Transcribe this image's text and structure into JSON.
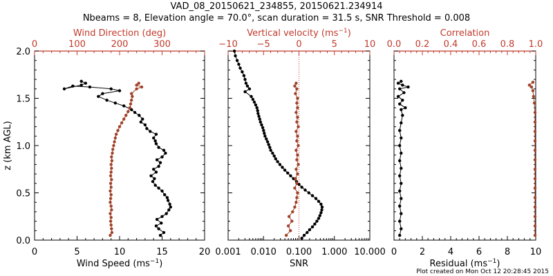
{
  "title_line1": "VAD_08_20150621_234855, 20150621.234914",
  "title_line2": "Nbeams = 8, Elevation angle = 70.0°, scan duration = 31.5 s, SNR Threshold = 0.008",
  "footer": "Plot created on Mon Oct 12 20:28:45 2015",
  "colors": {
    "black": "#000000",
    "red": "#c0392b",
    "brown": "#a0422a"
  },
  "chart_data": [
    {
      "type": "line",
      "panel": "wind",
      "ylabel": "z (km AGL)",
      "ylim": [
        0.0,
        2.0
      ],
      "y_ticks": [
        "0.0",
        "0.5",
        "1.0",
        "1.5",
        "2.0"
      ],
      "bottom_axis": {
        "label": "Wind Speed (ms⁻¹)",
        "range": [
          0,
          20
        ],
        "ticks": [
          "0",
          "5",
          "10",
          "15",
          "20"
        ]
      },
      "top_axis": {
        "label": "Wind Direction (deg)",
        "range": [
          0,
          400
        ],
        "ticks": [
          "0",
          "100",
          "200",
          "300"
        ]
      },
      "series": [
        {
          "name": "Wind Speed",
          "axis": "bottom",
          "color": "#000000",
          "points": [
            [
              14.8,
              0.05
            ],
            [
              15.2,
              0.08
            ],
            [
              14.6,
              0.12
            ],
            [
              14.3,
              0.15
            ],
            [
              14.9,
              0.18
            ],
            [
              14.4,
              0.22
            ],
            [
              15.0,
              0.25
            ],
            [
              15.5,
              0.28
            ],
            [
              15.8,
              0.32
            ],
            [
              16.0,
              0.35
            ],
            [
              15.9,
              0.38
            ],
            [
              15.7,
              0.42
            ],
            [
              15.6,
              0.45
            ],
            [
              15.3,
              0.48
            ],
            [
              15.0,
              0.52
            ],
            [
              14.6,
              0.55
            ],
            [
              14.2,
              0.58
            ],
            [
              13.9,
              0.62
            ],
            [
              14.1,
              0.65
            ],
            [
              13.7,
              0.68
            ],
            [
              14.3,
              0.72
            ],
            [
              14.0,
              0.75
            ],
            [
              14.6,
              0.78
            ],
            [
              14.8,
              0.82
            ],
            [
              14.4,
              0.85
            ],
            [
              15.0,
              0.88
            ],
            [
              15.4,
              0.92
            ],
            [
              15.2,
              0.95
            ],
            [
              14.6,
              0.98
            ],
            [
              14.3,
              1.02
            ],
            [
              14.2,
              1.05
            ],
            [
              14.0,
              1.08
            ],
            [
              14.3,
              1.12
            ],
            [
              13.6,
              1.15
            ],
            [
              13.2,
              1.18
            ],
            [
              13.0,
              1.22
            ],
            [
              12.5,
              1.25
            ],
            [
              12.7,
              1.28
            ],
            [
              12.3,
              1.32
            ],
            [
              11.8,
              1.35
            ],
            [
              11.4,
              1.38
            ],
            [
              10.5,
              1.42
            ],
            [
              9.5,
              1.45
            ],
            [
              8.5,
              1.48
            ],
            [
              7.5,
              1.52
            ],
            [
              8.0,
              1.55
            ],
            [
              10.0,
              1.58
            ],
            [
              9.0,
              1.6
            ],
            [
              6.5,
              1.62
            ],
            [
              4.5,
              1.63
            ],
            [
              3.5,
              1.6
            ],
            [
              5.5,
              1.64
            ],
            [
              6.0,
              1.66
            ],
            [
              5.5,
              1.68
            ]
          ]
        },
        {
          "name": "Wind Direction",
          "axis": "top",
          "color": "#a0422a",
          "points": [
            [
              178,
              0.05
            ],
            [
              182,
              0.08
            ],
            [
              181,
              0.12
            ],
            [
              180,
              0.16
            ],
            [
              179,
              0.2
            ],
            [
              180,
              0.24
            ],
            [
              178,
              0.28
            ],
            [
              181,
              0.32
            ],
            [
              180,
              0.36
            ],
            [
              178,
              0.4
            ],
            [
              179,
              0.44
            ],
            [
              180,
              0.48
            ],
            [
              178,
              0.52
            ],
            [
              180,
              0.56
            ],
            [
              179,
              0.6
            ],
            [
              181,
              0.64
            ],
            [
              179,
              0.68
            ],
            [
              180,
              0.72
            ],
            [
              181,
              0.76
            ],
            [
              180,
              0.8
            ],
            [
              182,
              0.84
            ],
            [
              181,
              0.88
            ],
            [
              183,
              0.92
            ],
            [
              184,
              0.96
            ],
            [
              186,
              1.0
            ],
            [
              188,
              1.04
            ],
            [
              190,
              1.08
            ],
            [
              192,
              1.12
            ],
            [
              196,
              1.16
            ],
            [
              200,
              1.2
            ],
            [
              205,
              1.24
            ],
            [
              210,
              1.28
            ],
            [
              215,
              1.32
            ],
            [
              220,
              1.36
            ],
            [
              224,
              1.4
            ],
            [
              226,
              1.44
            ],
            [
              228,
              1.48
            ],
            [
              230,
              1.52
            ],
            [
              228,
              1.55
            ],
            [
              240,
              1.6
            ],
            [
              252,
              1.62
            ],
            [
              240,
              1.64
            ],
            [
              245,
              1.66
            ]
          ]
        }
      ]
    },
    {
      "type": "line",
      "panel": "snr",
      "ylim": [
        0.0,
        2.0
      ],
      "bottom_axis": {
        "label": "SNR",
        "scale": "log",
        "range": [
          0.001,
          10.0
        ],
        "ticks": [
          "0.001",
          "0.010",
          "0.100",
          "1.000",
          "10.000"
        ]
      },
      "top_axis": {
        "label": "Vertical velocity (ms⁻¹)",
        "range": [
          -10,
          10
        ],
        "ticks": [
          "−10",
          "−5",
          "0",
          "5",
          "10"
        ]
      },
      "reference_line": {
        "axis": "top",
        "value": 0
      },
      "series": [
        {
          "name": "SNR",
          "axis": "bottom",
          "color": "#000000",
          "points": [
            [
              0.12,
              0.02
            ],
            [
              0.14,
              0.05
            ],
            [
              0.17,
              0.08
            ],
            [
              0.2,
              0.11
            ],
            [
              0.24,
              0.14
            ],
            [
              0.28,
              0.17
            ],
            [
              0.32,
              0.2
            ],
            [
              0.36,
              0.23
            ],
            [
              0.39,
              0.26
            ],
            [
              0.42,
              0.29
            ],
            [
              0.44,
              0.32
            ],
            [
              0.45,
              0.35
            ],
            [
              0.42,
              0.38
            ],
            [
              0.36,
              0.41
            ],
            [
              0.3,
              0.44
            ],
            [
              0.24,
              0.47
            ],
            [
              0.19,
              0.5
            ],
            [
              0.15,
              0.53
            ],
            [
              0.12,
              0.56
            ],
            [
              0.1,
              0.59
            ],
            [
              0.085,
              0.62
            ],
            [
              0.07,
              0.65
            ],
            [
              0.058,
              0.68
            ],
            [
              0.048,
              0.71
            ],
            [
              0.04,
              0.74
            ],
            [
              0.034,
              0.77
            ],
            [
              0.029,
              0.8
            ],
            [
              0.025,
              0.83
            ],
            [
              0.022,
              0.86
            ],
            [
              0.02,
              0.89
            ],
            [
              0.018,
              0.92
            ],
            [
              0.016,
              0.95
            ],
            [
              0.015,
              0.98
            ],
            [
              0.014,
              1.01
            ],
            [
              0.013,
              1.04
            ],
            [
              0.012,
              1.07
            ],
            [
              0.011,
              1.1
            ],
            [
              0.0105,
              1.13
            ],
            [
              0.01,
              1.16
            ],
            [
              0.0095,
              1.19
            ],
            [
              0.0088,
              1.22
            ],
            [
              0.0082,
              1.25
            ],
            [
              0.0078,
              1.28
            ],
            [
              0.0074,
              1.31
            ],
            [
              0.007,
              1.34
            ],
            [
              0.0068,
              1.37
            ],
            [
              0.0065,
              1.4
            ],
            [
              0.006,
              1.43
            ],
            [
              0.0055,
              1.46
            ],
            [
              0.005,
              1.49
            ],
            [
              0.0045,
              1.52
            ],
            [
              0.003,
              1.57
            ],
            [
              0.004,
              1.6
            ],
            [
              0.0035,
              1.63
            ],
            [
              0.0032,
              1.66
            ],
            [
              0.003,
              1.7
            ],
            [
              0.0028,
              1.74
            ],
            [
              0.0025,
              1.78
            ],
            [
              0.0022,
              1.82
            ],
            [
              0.002,
              1.86
            ],
            [
              0.0018,
              1.9
            ],
            [
              0.0016,
              1.95
            ],
            [
              0.0015,
              2.0
            ]
          ]
        },
        {
          "name": "Vertical velocity",
          "axis": "top",
          "color": "#a0422a",
          "points": [
            [
              -1.8,
              0.05
            ],
            [
              -1.2,
              0.1
            ],
            [
              -1.5,
              0.15
            ],
            [
              -1.0,
              0.2
            ],
            [
              -1.4,
              0.25
            ],
            [
              -0.9,
              0.3
            ],
            [
              -0.6,
              0.35
            ],
            [
              -0.4,
              0.4
            ],
            [
              -0.3,
              0.45
            ],
            [
              -0.2,
              0.5
            ],
            [
              -0.6,
              0.55
            ],
            [
              -0.3,
              0.6
            ],
            [
              -0.5,
              0.65
            ],
            [
              -0.2,
              0.7
            ],
            [
              -0.4,
              0.75
            ],
            [
              -0.1,
              0.8
            ],
            [
              -0.3,
              0.85
            ],
            [
              -0.2,
              0.9
            ],
            [
              -0.4,
              0.95
            ],
            [
              -0.1,
              1.0
            ],
            [
              -0.3,
              1.05
            ],
            [
              -0.2,
              1.1
            ],
            [
              -0.4,
              1.15
            ],
            [
              -0.1,
              1.2
            ],
            [
              -0.3,
              1.25
            ],
            [
              -0.2,
              1.3
            ],
            [
              -0.4,
              1.35
            ],
            [
              -0.2,
              1.4
            ],
            [
              -0.3,
              1.45
            ],
            [
              -0.2,
              1.5
            ],
            [
              -0.5,
              1.55
            ],
            [
              -0.3,
              1.6
            ],
            [
              -0.6,
              1.63
            ],
            [
              -0.4,
              1.66
            ]
          ]
        }
      ]
    },
    {
      "type": "line",
      "panel": "residual",
      "ylim": [
        0.0,
        2.0
      ],
      "bottom_axis": {
        "label": "Residual (ms⁻¹)",
        "range": [
          0,
          10
        ],
        "ticks": [
          "0",
          "2",
          "4",
          "6",
          "8",
          "10"
        ]
      },
      "top_axis": {
        "label": "Correlation",
        "range": [
          0.0,
          1.0
        ],
        "ticks": [
          "0.0",
          "0.2",
          "0.4",
          "0.6",
          "0.8",
          "1.0"
        ]
      },
      "series": [
        {
          "name": "Residual",
          "axis": "bottom",
          "color": "#000000",
          "points": [
            [
              0.4,
              0.05
            ],
            [
              0.5,
              0.12
            ],
            [
              0.4,
              0.2
            ],
            [
              0.5,
              0.28
            ],
            [
              0.4,
              0.36
            ],
            [
              0.5,
              0.44
            ],
            [
              0.4,
              0.52
            ],
            [
              0.5,
              0.6
            ],
            [
              0.4,
              0.68
            ],
            [
              0.5,
              0.76
            ],
            [
              0.4,
              0.84
            ],
            [
              0.5,
              0.92
            ],
            [
              0.4,
              1.0
            ],
            [
              0.5,
              1.08
            ],
            [
              0.4,
              1.16
            ],
            [
              0.5,
              1.24
            ],
            [
              0.6,
              1.32
            ],
            [
              0.5,
              1.38
            ],
            [
              0.8,
              1.4
            ],
            [
              0.4,
              1.44
            ],
            [
              0.6,
              1.48
            ],
            [
              0.3,
              1.52
            ],
            [
              0.7,
              1.56
            ],
            [
              0.4,
              1.6
            ],
            [
              1.0,
              1.62
            ],
            [
              0.6,
              1.64
            ],
            [
              0.3,
              1.66
            ],
            [
              0.5,
              1.68
            ]
          ]
        },
        {
          "name": "Correlation",
          "axis": "top",
          "color": "#a0422a",
          "points": [
            [
              0.995,
              0.05
            ],
            [
              0.995,
              0.15
            ],
            [
              0.995,
              0.25
            ],
            [
              0.995,
              0.35
            ],
            [
              0.995,
              0.45
            ],
            [
              0.995,
              0.55
            ],
            [
              0.995,
              0.65
            ],
            [
              0.995,
              0.75
            ],
            [
              0.995,
              0.85
            ],
            [
              0.995,
              0.95
            ],
            [
              0.995,
              1.05
            ],
            [
              0.995,
              1.15
            ],
            [
              0.995,
              1.25
            ],
            [
              0.995,
              1.35
            ],
            [
              0.99,
              1.45
            ],
            [
              0.985,
              1.52
            ],
            [
              0.98,
              1.58
            ],
            [
              0.97,
              1.62
            ],
            [
              0.955,
              1.64
            ],
            [
              0.98,
              1.67
            ]
          ]
        }
      ]
    }
  ]
}
